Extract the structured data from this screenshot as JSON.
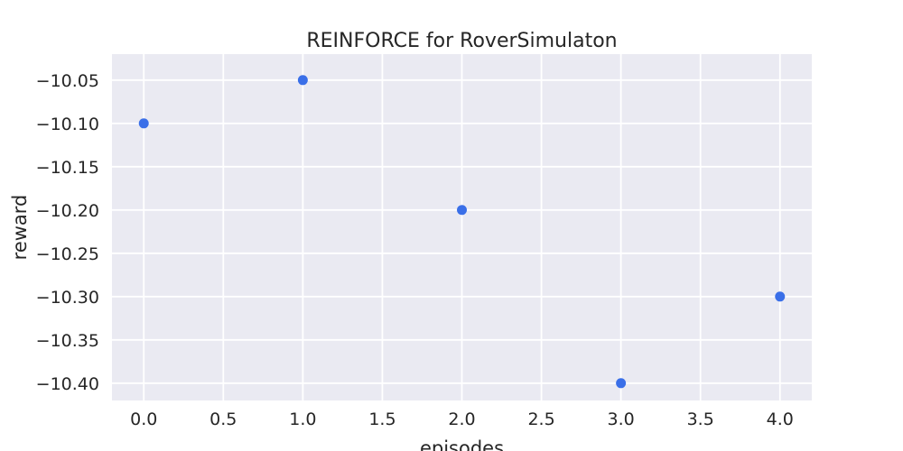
{
  "chart_data": {
    "type": "scatter",
    "title": "REINFORCE for RoverSimulaton",
    "xlabel": "episodes",
    "ylabel": "reward",
    "xlim": [
      -0.2,
      4.2
    ],
    "ylim": [
      -10.42,
      -10.02
    ],
    "xticks": [
      0.0,
      0.5,
      1.0,
      1.5,
      2.0,
      2.5,
      3.0,
      3.5,
      4.0
    ],
    "xtick_labels": [
      "0.0",
      "0.5",
      "1.0",
      "1.5",
      "2.0",
      "2.5",
      "3.0",
      "3.5",
      "4.0"
    ],
    "yticks": [
      -10.05,
      -10.1,
      -10.15,
      -10.2,
      -10.25,
      -10.3,
      -10.35,
      -10.4
    ],
    "ytick_labels": [
      "−10.05",
      "−10.10",
      "−10.15",
      "−10.20",
      "−10.25",
      "−10.30",
      "−10.35",
      "−10.40"
    ],
    "grid": true,
    "series": [
      {
        "x": [
          0,
          1,
          2,
          3,
          4
        ],
        "y": [
          -10.1,
          -10.05,
          -10.2,
          -10.4,
          -10.3
        ],
        "color": "#3a6fe8"
      }
    ],
    "plot_background": "#eaeaf2",
    "grid_color": "#ffffff"
  }
}
